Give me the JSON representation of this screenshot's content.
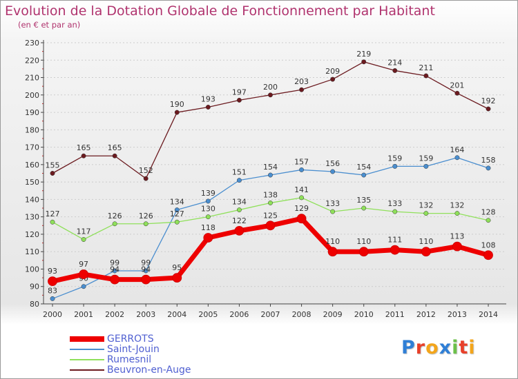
{
  "title": "Evolution de la Dotation Globale de Fonctionnement par Habitant",
  "subtitle": "(en € et par an)",
  "brand": "Proxiti",
  "colors": {
    "title": "#b0336e",
    "legend_text": "#4f5fd1",
    "axis": "#444444",
    "grid": "#cccccc",
    "label": "#333333"
  },
  "chart_data": {
    "type": "line",
    "title": "Evolution de la Dotation Globale de Fonctionnement par Habitant",
    "subtitle": "(en € et par an)",
    "x": [
      2000,
      2001,
      2002,
      2003,
      2004,
      2005,
      2006,
      2007,
      2008,
      2009,
      2010,
      2011,
      2012,
      2013,
      2014
    ],
    "y_ticks": [
      80,
      90,
      100,
      110,
      120,
      130,
      140,
      150,
      160,
      170,
      180,
      190,
      200,
      210,
      220,
      230
    ],
    "ylim": [
      80,
      230
    ],
    "grid": true,
    "legend_position": "bottom-left",
    "series": [
      {
        "name": "Beuvron-en-Auge",
        "color": "#6b1a1f",
        "values": [
          155,
          165,
          165,
          152,
          190,
          193,
          197,
          200,
          203,
          209,
          219,
          214,
          211,
          201,
          192
        ]
      },
      {
        "name": "Saint-Jouin",
        "color": "#4a8ecf",
        "values": [
          83,
          90,
          99,
          99,
          134,
          139,
          151,
          154,
          157,
          156,
          154,
          159,
          159,
          164,
          158
        ]
      },
      {
        "name": "Rumesnil",
        "color": "#8fe05a",
        "values": [
          127,
          117,
          126,
          126,
          127,
          130,
          134,
          138,
          141,
          133,
          135,
          133,
          132,
          132,
          128
        ]
      },
      {
        "name": "GERROTS",
        "color": "#ee0000",
        "values": [
          93,
          97,
          94,
          94,
          95,
          118,
          122,
          125,
          129,
          110,
          110,
          111,
          110,
          113,
          108
        ]
      }
    ]
  },
  "legend": [
    {
      "name": "GERROTS",
      "color": "#ee0000"
    },
    {
      "name": "Saint-Jouin",
      "color": "#4a8ecf"
    },
    {
      "name": "Rumesnil",
      "color": "#8fe05a"
    },
    {
      "name": "Beuvron-en-Auge",
      "color": "#6b1a1f"
    }
  ]
}
